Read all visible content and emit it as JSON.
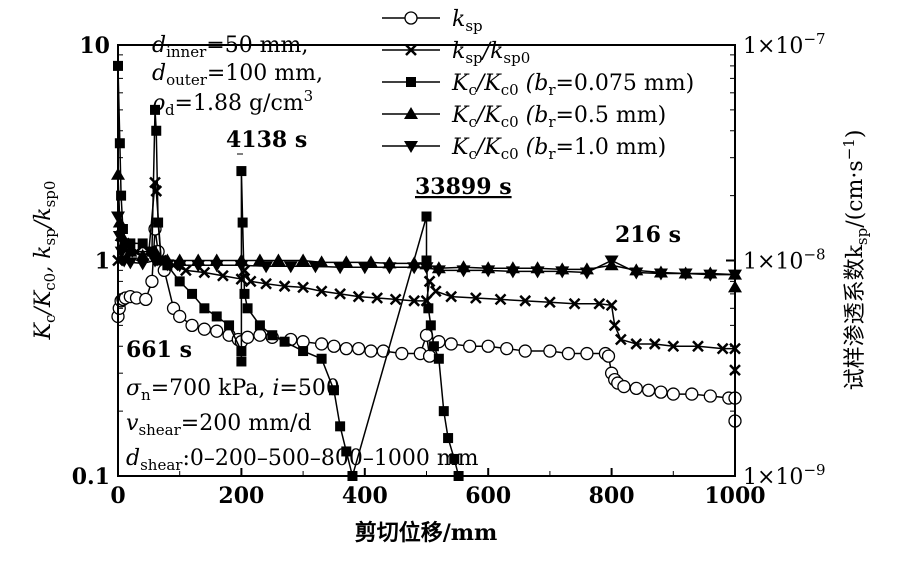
{
  "chart_data": {
    "type": "scatter",
    "xlabel": "剪切位移/mm",
    "ylabel_left": {
      "a": "K",
      "a_sub": "c",
      "b": "/K",
      "b_sub": "c0",
      "c": ", k",
      "c_sub": "sp",
      "d": "/k",
      "d_sub": "sp0"
    },
    "ylabel_right": {
      "main": "试样渗透系数k",
      "sub": "sp",
      "unit": "/(cm·s",
      "sup": "−1",
      "close": ")"
    },
    "xlim": [
      0,
      1000
    ],
    "ylim_left": [
      0.1,
      10
    ],
    "ylim_right": [
      1e-09,
      1e-07
    ],
    "x_ticks": [
      "0",
      "200",
      "400",
      "600",
      "800",
      "1000"
    ],
    "x_tick_values": [
      0,
      200,
      400,
      600,
      800,
      1000
    ],
    "y_ticks_left": [
      {
        "v": 10,
        "label": "10"
      },
      {
        "v": 1,
        "label": "1"
      },
      {
        "v": 0.1,
        "label": "0.1"
      }
    ],
    "y_ticks_right": [
      {
        "v": 10,
        "label": "1×10",
        "sup": "−7"
      },
      {
        "v": 1,
        "label": "1×10",
        "sup": "−8"
      },
      {
        "v": 0.1,
        "label": "1×10",
        "sup": "−9"
      }
    ],
    "legend_position": "top-right",
    "series": [
      {
        "name": "k_sp",
        "label": "k",
        "sub": "sp",
        "extra": "",
        "marker": "circle",
        "x": [
          0,
          2,
          5,
          8,
          12,
          20,
          30,
          45,
          55,
          60,
          65,
          75,
          90,
          100,
          120,
          140,
          160,
          180,
          195,
          200,
          210,
          230,
          250,
          280,
          300,
          330,
          350,
          370,
          390,
          410,
          430,
          460,
          490,
          500,
          505,
          520,
          540,
          570,
          600,
          630,
          660,
          700,
          730,
          760,
          790,
          795,
          800,
          805,
          810,
          820,
          840,
          860,
          880,
          900,
          930,
          960,
          990,
          1000,
          1000
        ],
        "y": [
          0.55,
          0.6,
          0.65,
          0.66,
          0.67,
          0.68,
          0.67,
          0.66,
          0.8,
          1.4,
          1.1,
          0.9,
          0.6,
          0.55,
          0.5,
          0.48,
          0.47,
          0.45,
          0.43,
          0.42,
          0.44,
          0.45,
          0.44,
          0.43,
          0.42,
          0.41,
          0.4,
          0.39,
          0.39,
          0.38,
          0.38,
          0.37,
          0.37,
          0.45,
          0.36,
          0.42,
          0.41,
          0.4,
          0.4,
          0.39,
          0.38,
          0.38,
          0.37,
          0.37,
          0.37,
          0.36,
          0.3,
          0.28,
          0.27,
          0.26,
          0.255,
          0.25,
          0.245,
          0.24,
          0.24,
          0.235,
          0.23,
          0.23,
          0.18
        ]
      },
      {
        "name": "k_sp/k_sp0",
        "label": "k",
        "sub": "sp",
        "extra": "/k",
        "sub2": "sp0",
        "marker": "x",
        "x": [
          0,
          5,
          10,
          20,
          30,
          50,
          60,
          62,
          70,
          90,
          110,
          140,
          170,
          200,
          205,
          215,
          240,
          270,
          300,
          330,
          360,
          390,
          420,
          450,
          480,
          500,
          505,
          515,
          540,
          580,
          620,
          660,
          700,
          740,
          780,
          800,
          805,
          815,
          840,
          870,
          900,
          940,
          980,
          1000,
          1000
        ],
        "y": [
          1.0,
          1.3,
          1.2,
          1.15,
          1.1,
          1.1,
          2.3,
          2.1,
          1.0,
          0.95,
          0.9,
          0.88,
          0.85,
          0.82,
          0.9,
          0.8,
          0.78,
          0.76,
          0.75,
          0.72,
          0.7,
          0.68,
          0.67,
          0.66,
          0.65,
          0.65,
          0.8,
          0.72,
          0.68,
          0.67,
          0.66,
          0.65,
          0.64,
          0.63,
          0.63,
          0.62,
          0.5,
          0.43,
          0.41,
          0.41,
          0.4,
          0.4,
          0.39,
          0.39,
          0.31
        ]
      },
      {
        "name": "Kc/Kc0 (br=0.075 mm)",
        "label": "K",
        "sub": "c",
        "extra": "/K",
        "sub2": "c0",
        "cond": " (b",
        "cond_sub": "r",
        "cond_val": "=0.075 mm)",
        "marker": "square",
        "x": [
          0,
          3,
          5,
          8,
          12,
          20,
          40,
          55,
          60,
          62,
          65,
          70,
          80,
          100,
          120,
          140,
          160,
          180,
          200,
          200,
          200,
          202,
          205,
          210,
          230,
          250,
          270,
          300,
          330,
          350,
          360,
          370,
          380,
          500,
          500,
          503,
          507,
          512,
          520,
          528,
          535,
          545,
          552
        ],
        "y": [
          8,
          3.5,
          2.0,
          1.4,
          1.2,
          1.2,
          1.2,
          1.1,
          5.0,
          4.0,
          1.5,
          1.0,
          0.95,
          0.8,
          0.7,
          0.6,
          0.55,
          0.5,
          0.38,
          0.34,
          2.6,
          1.5,
          0.7,
          0.6,
          0.5,
          0.45,
          0.42,
          0.38,
          0.35,
          0.25,
          0.17,
          0.13,
          0.1,
          1.6,
          1.0,
          0.6,
          0.5,
          0.4,
          0.35,
          0.2,
          0.15,
          0.12,
          0.1
        ]
      },
      {
        "name": "Kc/Kc0 (br=0.5 mm)",
        "label": "K",
        "sub": "c",
        "extra": "/K",
        "sub2": "c0",
        "cond": " (b",
        "cond_sub": "r",
        "cond_val": "=0.5 mm)",
        "marker": "triangle-up",
        "x": [
          0,
          3,
          6,
          10,
          20,
          40,
          60,
          80,
          100,
          130,
          160,
          200,
          230,
          260,
          300,
          330,
          370,
          410,
          440,
          480,
          500,
          520,
          560,
          600,
          640,
          680,
          720,
          760,
          800,
          840,
          880,
          920,
          960,
          1000,
          1000
        ],
        "y": [
          2.5,
          1.5,
          1.3,
          1.2,
          1.1,
          1.05,
          1.1,
          1.0,
          1.0,
          1.0,
          1.0,
          1.0,
          1.0,
          1.0,
          1.0,
          0.98,
          0.98,
          0.98,
          0.97,
          0.97,
          0.96,
          0.92,
          0.93,
          0.92,
          0.92,
          0.92,
          0.91,
          0.91,
          0.95,
          0.9,
          0.88,
          0.87,
          0.87,
          0.86,
          0.75
        ]
      },
      {
        "name": "Kc/Kc0 (br=1.0 mm)",
        "label": "K",
        "sub": "c",
        "extra": "/K",
        "sub2": "c0",
        "cond": " (b",
        "cond_sub": "r",
        "cond_val": "=1.0 mm)",
        "marker": "triangle-down",
        "x": [
          0,
          3,
          6,
          10,
          20,
          40,
          60,
          80,
          100,
          130,
          160,
          200,
          240,
          280,
          320,
          360,
          400,
          440,
          480,
          500,
          520,
          560,
          600,
          640,
          680,
          720,
          760,
          800,
          840,
          880,
          920,
          960,
          1000
        ],
        "y": [
          1.6,
          1.3,
          1.1,
          1.0,
          0.98,
          0.97,
          1.0,
          0.96,
          0.95,
          0.95,
          0.95,
          0.95,
          0.94,
          0.94,
          0.94,
          0.93,
          0.93,
          0.93,
          0.93,
          0.93,
          0.9,
          0.9,
          0.9,
          0.89,
          0.89,
          0.89,
          0.88,
          1.0,
          0.88,
          0.87,
          0.87,
          0.86,
          0.86
        ]
      }
    ],
    "annotations": {
      "geom": {
        "l1a": "d",
        "l1s": "inner",
        "l1b": "=50 mm,",
        "l2a": "d",
        "l2s": "outer",
        "l2b": "=100 mm,",
        "l3a": "ρ",
        "l3s": "d",
        "l3b": "=1.88 g/cm",
        "l3p": "3"
      },
      "test": {
        "l1a": "σ",
        "l1s": "n",
        "l1b": "=700 kPa, ",
        "l1c": "i",
        "l1d": "=500",
        "l2a": "v",
        "l2s": "shear",
        "l2b": "=200 mm/d",
        "l3a": "d",
        "l3s": "shear",
        "l3b": ":0–200–500–800–1000 mm"
      },
      "times": [
        "4138 s",
        "33899 s",
        "216 s",
        "661 s"
      ]
    }
  }
}
